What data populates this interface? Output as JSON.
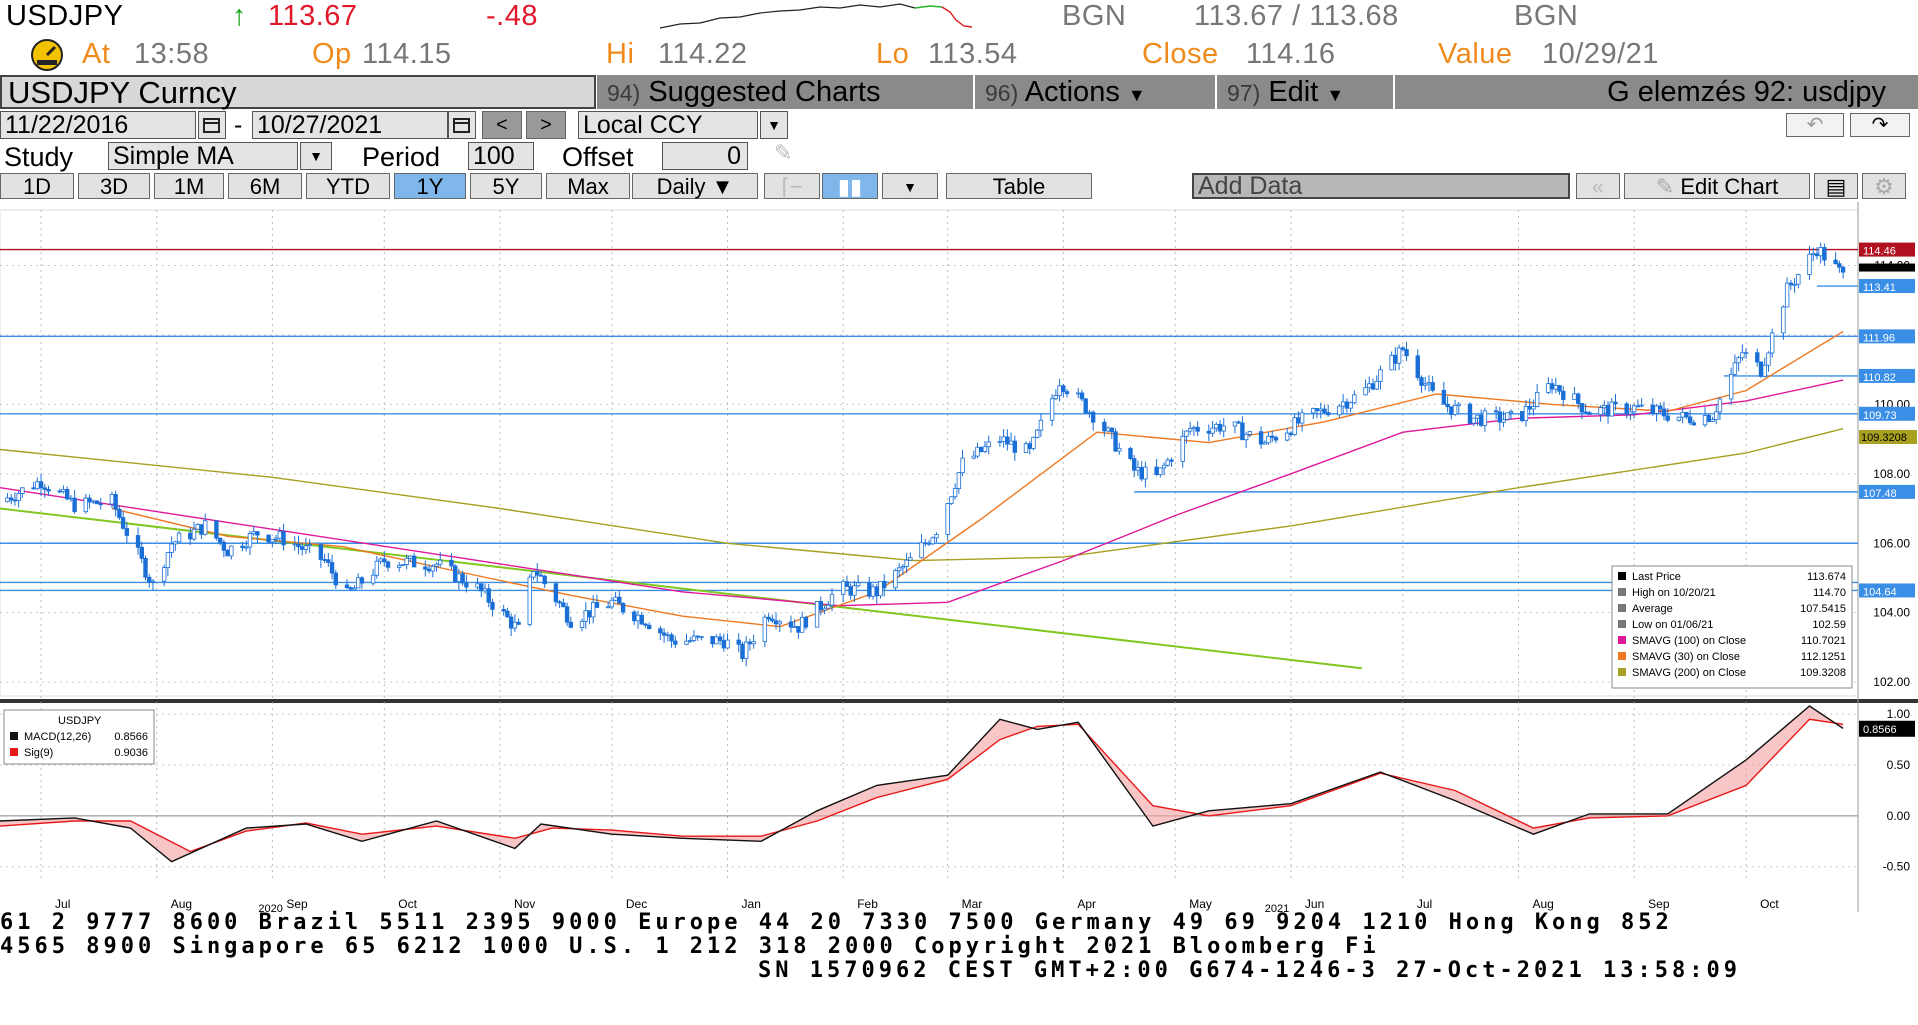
{
  "quote": {
    "ticker": "USDJPY",
    "arrow": "↑",
    "last": "113.67",
    "change": "-.48",
    "source1": "BGN",
    "bid_ask": "113.67 / 113.68",
    "source2": "BGN",
    "at_label": "At",
    "at_time": "13:58",
    "op_label": "Op",
    "op_value": "114.15",
    "hi_label": "Hi",
    "hi_value": "114.22",
    "lo_label": "Lo",
    "lo_value": "113.54",
    "close_label": "Close",
    "close_value": "114.16",
    "value_label": "Value",
    "value_date": "10/29/21"
  },
  "toolbar": {
    "security": "USDJPY Curncy",
    "menu_suggested_num": "94)",
    "menu_suggested": "Suggested Charts",
    "menu_actions_num": "96)",
    "menu_actions": "Actions",
    "menu_edit_num": "97)",
    "menu_edit": "Edit",
    "title": "G elemzés 92: usdjpy",
    "start_date": "11/22/2016",
    "dash": "-",
    "end_date": "10/27/2021",
    "currency": "Local CCY",
    "study_label": "Study",
    "study_value": "Simple MA",
    "period_label": "Period",
    "period_value": "100",
    "offset_label": "Offset",
    "offset_value": "0",
    "ranges": [
      "1D",
      "3D",
      "1M",
      "6M",
      "YTD",
      "1Y",
      "5Y",
      "Max"
    ],
    "selected_range": "1Y",
    "frequency": "Daily ▼",
    "table": "Table",
    "add_data": "Add Data",
    "edit_chart": "Edit Chart"
  },
  "colors": {
    "candle": "#1a6fd6",
    "sma100": "#e0189a",
    "sma30": "#f07820",
    "sma200": "#a8a020",
    "trendline": "#80c820",
    "hline": "#3a8ee6",
    "resist": "#b01020",
    "macd": "#111111",
    "signal": "#e81818"
  },
  "chart_data": [
    {
      "type": "candlestick",
      "title": "",
      "x_labels": [
        "Jul",
        "Aug",
        "Sep",
        "Oct",
        "Nov",
        "Dec",
        "Jan",
        "Feb",
        "Mar",
        "Apr",
        "May",
        "Jun",
        "Jul",
        "Aug",
        "Sep",
        "Oct"
      ],
      "year_labels": [
        "2020",
        "2021"
      ],
      "y_ticks": [
        "114.00",
        "110.00",
        "108.00",
        "106.00",
        "104.00",
        "102.00"
      ],
      "ylim": [
        101.6,
        115.6
      ],
      "grid": true,
      "price_path": [
        {
          "d": "2020-06-20",
          "v": 107.2
        },
        {
          "d": "2020-07-01",
          "v": 107.8
        },
        {
          "d": "2020-07-10",
          "v": 107.1
        },
        {
          "d": "2020-07-20",
          "v": 107.2
        },
        {
          "d": "2020-07-31",
          "v": 104.8
        },
        {
          "d": "2020-08-05",
          "v": 106.0
        },
        {
          "d": "2020-08-14",
          "v": 106.5
        },
        {
          "d": "2020-08-20",
          "v": 105.8
        },
        {
          "d": "2020-08-28",
          "v": 106.3
        },
        {
          "d": "2020-09-05",
          "v": 106.1
        },
        {
          "d": "2020-09-15",
          "v": 105.5
        },
        {
          "d": "2020-09-21",
          "v": 104.5
        },
        {
          "d": "2020-10-01",
          "v": 105.5
        },
        {
          "d": "2020-10-15",
          "v": 105.4
        },
        {
          "d": "2020-10-26",
          "v": 104.7
        },
        {
          "d": "2020-11-06",
          "v": 103.5
        },
        {
          "d": "2020-11-10",
          "v": 105.3
        },
        {
          "d": "2020-11-20",
          "v": 103.8
        },
        {
          "d": "2020-12-01",
          "v": 104.3
        },
        {
          "d": "2020-12-10",
          "v": 103.8
        },
        {
          "d": "2020-12-17",
          "v": 103.2
        },
        {
          "d": "2020-12-31",
          "v": 103.2
        },
        {
          "d": "2021-01-05",
          "v": 102.8
        },
        {
          "d": "2021-01-12",
          "v": 104.0
        },
        {
          "d": "2021-01-20",
          "v": 103.6
        },
        {
          "d": "2021-01-31",
          "v": 104.7
        },
        {
          "d": "2021-02-10",
          "v": 104.6
        },
        {
          "d": "2021-02-19",
          "v": 105.5
        },
        {
          "d": "2021-02-26",
          "v": 106.4
        },
        {
          "d": "2021-03-05",
          "v": 108.3
        },
        {
          "d": "2021-03-15",
          "v": 109.0
        },
        {
          "d": "2021-03-23",
          "v": 108.6
        },
        {
          "d": "2021-03-31",
          "v": 110.7
        },
        {
          "d": "2021-04-10",
          "v": 109.6
        },
        {
          "d": "2021-04-20",
          "v": 108.1
        },
        {
          "d": "2021-04-26",
          "v": 107.9
        },
        {
          "d": "2021-05-05",
          "v": 109.3
        },
        {
          "d": "2021-05-15",
          "v": 109.4
        },
        {
          "d": "2021-05-25",
          "v": 108.9
        },
        {
          "d": "2021-06-05",
          "v": 109.6
        },
        {
          "d": "2021-06-20",
          "v": 110.3
        },
        {
          "d": "2021-07-01",
          "v": 111.6
        },
        {
          "d": "2021-07-10",
          "v": 110.1
        },
        {
          "d": "2021-07-20",
          "v": 109.6
        },
        {
          "d": "2021-08-01",
          "v": 109.6
        },
        {
          "d": "2021-08-10",
          "v": 110.6
        },
        {
          "d": "2021-08-20",
          "v": 109.8
        },
        {
          "d": "2021-09-01",
          "v": 109.9
        },
        {
          "d": "2021-09-15",
          "v": 109.6
        },
        {
          "d": "2021-09-22",
          "v": 109.7
        },
        {
          "d": "2021-09-30",
          "v": 111.5
        },
        {
          "d": "2021-10-05",
          "v": 111.0
        },
        {
          "d": "2021-10-12",
          "v": 113.3
        },
        {
          "d": "2021-10-20",
          "v": 114.5
        },
        {
          "d": "2021-10-27",
          "v": 113.7
        }
      ],
      "sma30": [
        {
          "d": "2020-07-20",
          "v": 107.0
        },
        {
          "d": "2020-08-20",
          "v": 106.2
        },
        {
          "d": "2020-09-20",
          "v": 105.9
        },
        {
          "d": "2020-10-20",
          "v": 105.2
        },
        {
          "d": "2020-11-20",
          "v": 104.5
        },
        {
          "d": "2020-12-20",
          "v": 103.9
        },
        {
          "d": "2021-01-15",
          "v": 103.6
        },
        {
          "d": "2021-02-10",
          "v": 104.6
        },
        {
          "d": "2021-03-10",
          "v": 106.7
        },
        {
          "d": "2021-04-10",
          "v": 109.2
        },
        {
          "d": "2021-05-10",
          "v": 108.9
        },
        {
          "d": "2021-06-10",
          "v": 109.5
        },
        {
          "d": "2021-07-10",
          "v": 110.3
        },
        {
          "d": "2021-08-10",
          "v": 110.0
        },
        {
          "d": "2021-09-10",
          "v": 109.8
        },
        {
          "d": "2021-10-01",
          "v": 110.4
        },
        {
          "d": "2021-10-27",
          "v": 112.1
        }
      ],
      "sma100": [
        {
          "d": "2020-06-20",
          "v": 107.6
        },
        {
          "d": "2020-08-20",
          "v": 106.6
        },
        {
          "d": "2020-10-20",
          "v": 105.6
        },
        {
          "d": "2020-12-20",
          "v": 104.6
        },
        {
          "d": "2021-01-31",
          "v": 104.2
        },
        {
          "d": "2021-03-01",
          "v": 104.3
        },
        {
          "d": "2021-04-01",
          "v": 105.5
        },
        {
          "d": "2021-05-01",
          "v": 106.8
        },
        {
          "d": "2021-06-01",
          "v": 108.0
        },
        {
          "d": "2021-07-01",
          "v": 109.2
        },
        {
          "d": "2021-08-01",
          "v": 109.6
        },
        {
          "d": "2021-09-01",
          "v": 109.7
        },
        {
          "d": "2021-10-01",
          "v": 110.1
        },
        {
          "d": "2021-10-27",
          "v": 110.7
        }
      ],
      "sma200": [
        {
          "d": "2020-06-20",
          "v": 108.7
        },
        {
          "d": "2020-09-01",
          "v": 107.9
        },
        {
          "d": "2020-11-01",
          "v": 107.0
        },
        {
          "d": "2021-01-01",
          "v": 106.0
        },
        {
          "d": "2021-02-20",
          "v": 105.5
        },
        {
          "d": "2021-04-01",
          "v": 105.6
        },
        {
          "d": "2021-06-01",
          "v": 106.5
        },
        {
          "d": "2021-08-01",
          "v": 107.6
        },
        {
          "d": "2021-10-01",
          "v": 108.6
        },
        {
          "d": "2021-10-27",
          "v": 109.3
        }
      ],
      "trendline": [
        {
          "d": "2020-06-20",
          "v": 107.0
        },
        {
          "d": "2021-06-20",
          "v": 102.4
        }
      ],
      "horizontal_lines": [
        {
          "label": "114.46",
          "v": 114.46,
          "box": true,
          "dark": true,
          "from": "2020-06-20"
        },
        {
          "label": "113.41",
          "v": 113.41,
          "box": true,
          "from": "2021-10-20"
        },
        {
          "label": "111.96",
          "v": 111.96,
          "box": true,
          "from": "2020-06-20"
        },
        {
          "label": "110.82",
          "v": 110.82,
          "box": true,
          "from": "2021-09-25"
        },
        {
          "label": "109.73",
          "v": 109.73,
          "box": true,
          "from": "2020-06-20"
        },
        {
          "label": "107.48",
          "v": 107.48,
          "box": true,
          "from": "2021-04-20"
        },
        {
          "label": "",
          "v": 106.0,
          "box": false,
          "from": "2020-06-20"
        },
        {
          "label": "",
          "v": 104.87,
          "box": false,
          "from": "2020-06-20"
        },
        {
          "label": "104.64",
          "v": 104.64,
          "box": true,
          "from": "2020-06-20"
        }
      ],
      "last_value_tag": "109.3208",
      "legend": {
        "position": "bottom-right",
        "rows": [
          {
            "label": "Last Price",
            "value": "113.674"
          },
          {
            "label": "High on 10/20/21",
            "value": "114.70"
          },
          {
            "label": "Average",
            "value": "107.5415"
          },
          {
            "label": "Low on 01/06/21",
            "value": "102.59"
          },
          {
            "label": "SMAVG (100)  on Close",
            "value": "110.7021"
          },
          {
            "label": "SMAVG (30)   on Close",
            "value": "112.1251"
          },
          {
            "label": "SMAVG (200)  on Close",
            "value": "109.3208"
          }
        ]
      }
    },
    {
      "type": "line",
      "title": "USDJPY",
      "y_ticks": [
        "1.00",
        "0.50",
        "0.00",
        "-0.50"
      ],
      "ylim": [
        -0.65,
        1.1
      ],
      "last_value_tag": "0.8566",
      "legend": {
        "rows": [
          {
            "label": "MACD(12,26)",
            "value": "0.8566"
          },
          {
            "label": "Sig(9)",
            "value": "0.9036"
          }
        ]
      },
      "series": [
        {
          "name": "MACD(12,26)",
          "points": [
            {
              "d": "2020-06-20",
              "v": -0.05
            },
            {
              "d": "2020-07-10",
              "v": -0.02
            },
            {
              "d": "2020-07-25",
              "v": -0.12
            },
            {
              "d": "2020-08-05",
              "v": -0.45
            },
            {
              "d": "2020-08-25",
              "v": -0.12
            },
            {
              "d": "2020-09-10",
              "v": -0.08
            },
            {
              "d": "2020-09-25",
              "v": -0.25
            },
            {
              "d": "2020-10-15",
              "v": -0.05
            },
            {
              "d": "2020-11-05",
              "v": -0.32
            },
            {
              "d": "2020-11-12",
              "v": -0.08
            },
            {
              "d": "2020-12-01",
              "v": -0.18
            },
            {
              "d": "2020-12-20",
              "v": -0.22
            },
            {
              "d": "2021-01-10",
              "v": -0.25
            },
            {
              "d": "2021-01-25",
              "v": 0.05
            },
            {
              "d": "2021-02-10",
              "v": 0.3
            },
            {
              "d": "2021-03-01",
              "v": 0.4
            },
            {
              "d": "2021-03-15",
              "v": 0.95
            },
            {
              "d": "2021-03-25",
              "v": 0.85
            },
            {
              "d": "2021-04-05",
              "v": 0.92
            },
            {
              "d": "2021-04-25",
              "v": -0.1
            },
            {
              "d": "2021-05-10",
              "v": 0.05
            },
            {
              "d": "2021-06-01",
              "v": 0.12
            },
            {
              "d": "2021-06-25",
              "v": 0.43
            },
            {
              "d": "2021-07-15",
              "v": 0.15
            },
            {
              "d": "2021-08-05",
              "v": -0.18
            },
            {
              "d": "2021-08-20",
              "v": 0.02
            },
            {
              "d": "2021-09-10",
              "v": 0.02
            },
            {
              "d": "2021-10-01",
              "v": 0.55
            },
            {
              "d": "2021-10-18",
              "v": 1.08
            },
            {
              "d": "2021-10-27",
              "v": 0.86
            }
          ]
        },
        {
          "name": "Sig(9)",
          "points": [
            {
              "d": "2020-06-20",
              "v": -0.1
            },
            {
              "d": "2020-07-10",
              "v": -0.05
            },
            {
              "d": "2020-07-25",
              "v": -0.05
            },
            {
              "d": "2020-08-10",
              "v": -0.35
            },
            {
              "d": "2020-08-25",
              "v": -0.15
            },
            {
              "d": "2020-09-10",
              "v": -0.07
            },
            {
              "d": "2020-09-25",
              "v": -0.18
            },
            {
              "d": "2020-10-15",
              "v": -0.1
            },
            {
              "d": "2020-11-05",
              "v": -0.22
            },
            {
              "d": "2020-11-15",
              "v": -0.12
            },
            {
              "d": "2020-12-01",
              "v": -0.14
            },
            {
              "d": "2020-12-20",
              "v": -0.2
            },
            {
              "d": "2021-01-10",
              "v": -0.2
            },
            {
              "d": "2021-01-25",
              "v": -0.05
            },
            {
              "d": "2021-02-10",
              "v": 0.18
            },
            {
              "d": "2021-03-01",
              "v": 0.36
            },
            {
              "d": "2021-03-15",
              "v": 0.75
            },
            {
              "d": "2021-03-25",
              "v": 0.88
            },
            {
              "d": "2021-04-05",
              "v": 0.9
            },
            {
              "d": "2021-04-25",
              "v": 0.1
            },
            {
              "d": "2021-05-10",
              "v": 0.0
            },
            {
              "d": "2021-06-01",
              "v": 0.1
            },
            {
              "d": "2021-06-25",
              "v": 0.42
            },
            {
              "d": "2021-07-15",
              "v": 0.25
            },
            {
              "d": "2021-08-05",
              "v": -0.12
            },
            {
              "d": "2021-08-20",
              "v": -0.02
            },
            {
              "d": "2021-09-10",
              "v": 0.0
            },
            {
              "d": "2021-10-01",
              "v": 0.3
            },
            {
              "d": "2021-10-18",
              "v": 0.95
            },
            {
              "d": "2021-10-27",
              "v": 0.9
            }
          ]
        }
      ]
    }
  ],
  "footer": {
    "line1": "61 2 9777 8600 Brazil 5511 2395 9000 Europe 44 20 7330 7500 Germany 49 69 9204 1210 Hong Kong 852",
    "line2": " 4565 8900       Singapore 65 6212 1000      U.S. 1 212 318 2000      Copyright 2021 Bloomberg Fi",
    "line3": "SN 1570962 CEST GMT+2:00 G674-1246-3 27-Oct-2021 13:58:09"
  }
}
